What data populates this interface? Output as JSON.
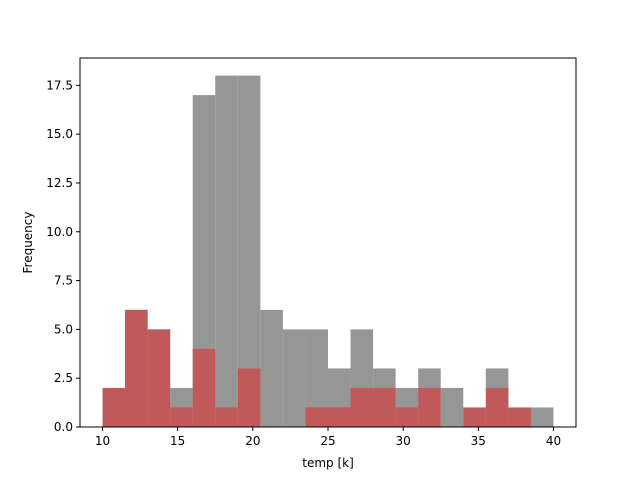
{
  "chart_data": {
    "type": "bar",
    "title": "",
    "xlabel": "temp [k]",
    "ylabel": "Frequency",
    "xlim": [
      8.5,
      41.5
    ],
    "ylim": [
      0,
      18.9
    ],
    "x_ticks": [
      10,
      15,
      20,
      25,
      30,
      35,
      40
    ],
    "y_ticks": [
      0.0,
      2.5,
      5.0,
      7.5,
      10.0,
      12.5,
      15.0,
      17.5
    ],
    "y_tick_labels": [
      "0.0",
      "2.5",
      "5.0",
      "7.5",
      "10.0",
      "12.5",
      "15.0",
      "17.5"
    ],
    "bin_edges": [
      10,
      11.5,
      13,
      14.5,
      16,
      17.5,
      19,
      20.5,
      22,
      23.5,
      25,
      26.5,
      28,
      29.5,
      31,
      32.5,
      34,
      35.5,
      37,
      38.5,
      40
    ],
    "series": [
      {
        "values": [
          2,
          6,
          5,
          2,
          17,
          18,
          18,
          6,
          5,
          5,
          3,
          5,
          3,
          2,
          3,
          2,
          1,
          3,
          1,
          1
        ],
        "color": "#969696"
      },
      {
        "values": [
          2,
          6,
          5,
          1,
          4,
          1,
          3,
          0,
          0,
          1,
          1,
          2,
          2,
          1,
          2,
          0,
          1,
          2,
          1,
          0
        ],
        "color": "#c05a5a"
      }
    ],
    "grid": false,
    "legend": "none"
  }
}
